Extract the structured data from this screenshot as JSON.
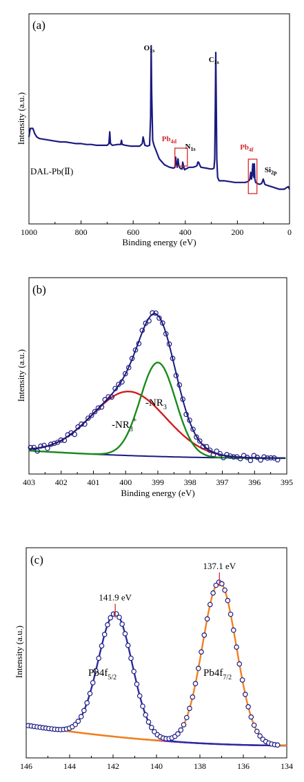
{
  "chart_data": [
    {
      "type": "line",
      "panel_label": "(a)",
      "xlabel": "Binding energy (eV)",
      "ylabel": "Intensity (a.u.)",
      "xlim": [
        1000,
        0
      ],
      "x_reversed": true,
      "xticks": [
        "1000",
        "800",
        "600",
        "400",
        "200",
        "0"
      ],
      "y_ticks_shown": false,
      "series": [
        {
          "name": "DAL-Pb(II)",
          "color": "#1a1a80",
          "x": [
            1000,
            995,
            985,
            978,
            970,
            960,
            940,
            920,
            900,
            880,
            860,
            840,
            820,
            800,
            780,
            760,
            740,
            720,
            700,
            693,
            690,
            687,
            680,
            660,
            648,
            645,
            642,
            630,
            610,
            590,
            575,
            565,
            562,
            558,
            555,
            545,
            537,
            533,
            531,
            529,
            525,
            520,
            500,
            480,
            460,
            445,
            440,
            437,
            434,
            431,
            428,
            425,
            420,
            415,
            412,
            410,
            407,
            404,
            402,
            399,
            396,
            392,
            385,
            370,
            360,
            355,
            352,
            349,
            345,
            340,
            320,
            305,
            295,
            290,
            287,
            285,
            283,
            281,
            279,
            276,
            270,
            250,
            230,
            210,
            190,
            170,
            160,
            156,
            152,
            149,
            146,
            144,
            141,
            139,
            137,
            135,
            133,
            130,
            125,
            118,
            112,
            107,
            104,
            101,
            98,
            95,
            90,
            80,
            60,
            40,
            20,
            10,
            5,
            0
          ],
          "y": [
            0.43,
            0.48,
            0.48,
            0.45,
            0.43,
            0.42,
            0.415,
            0.41,
            0.405,
            0.4,
            0.4,
            0.395,
            0.39,
            0.39,
            0.385,
            0.385,
            0.38,
            0.38,
            0.38,
            0.39,
            0.46,
            0.39,
            0.38,
            0.385,
            0.385,
            0.41,
            0.385,
            0.38,
            0.375,
            0.375,
            0.375,
            0.39,
            0.43,
            0.4,
            0.38,
            0.375,
            0.38,
            0.55,
            0.97,
            0.7,
            0.41,
            0.38,
            0.3,
            0.265,
            0.25,
            0.245,
            0.25,
            0.31,
            0.27,
            0.25,
            0.3,
            0.26,
            0.245,
            0.24,
            0.24,
            0.28,
            0.26,
            0.24,
            0.235,
            0.24,
            0.24,
            0.245,
            0.25,
            0.25,
            0.255,
            0.26,
            0.28,
            0.28,
            0.265,
            0.25,
            0.245,
            0.24,
            0.24,
            0.245,
            0.3,
            0.6,
            0.93,
            0.6,
            0.3,
            0.19,
            0.17,
            0.17,
            0.165,
            0.16,
            0.16,
            0.16,
            0.165,
            0.17,
            0.18,
            0.22,
            0.18,
            0.2,
            0.27,
            0.22,
            0.19,
            0.27,
            0.18,
            0.16,
            0.155,
            0.15,
            0.15,
            0.155,
            0.165,
            0.18,
            0.165,
            0.15,
            0.145,
            0.14,
            0.13,
            0.12,
            0.12,
            0.13,
            0.135,
            0.12
          ]
        }
      ],
      "annotations": [
        {
          "label": "O",
          "sub": "1s",
          "color": "#000000",
          "x": 533
        },
        {
          "label": "C",
          "sub": "1s",
          "color": "#000000",
          "x": 285
        },
        {
          "label": "Pb",
          "sub": "4d",
          "color": "#d6282b",
          "x": 430,
          "boxed": true
        },
        {
          "label": "N",
          "sub": "1s",
          "color": "#000000",
          "x": 402
        },
        {
          "label": "Pb",
          "sub": "4f",
          "color": "#d6282b",
          "x": 143,
          "boxed": true
        },
        {
          "label": "Si",
          "sub": "2p",
          "color": "#000000",
          "x": 104
        }
      ],
      "sample_label": "DAL-Pb(Ⅱ)"
    },
    {
      "type": "scatter",
      "panel_label": "(b)",
      "xlabel": "Binding energy (eV)",
      "ylabel": "Intensity (a.u.)",
      "xlim": [
        403,
        395
      ],
      "x_reversed": true,
      "xticks": [
        "403",
        "402",
        "401",
        "400",
        "399",
        "398",
        "397",
        "396",
        "395"
      ],
      "y_ticks_shown": false,
      "series": [
        {
          "name": "data",
          "kind": "points",
          "color": "#1a1a80"
        },
        {
          "name": "envelope",
          "kind": "line",
          "color": "#1a1a80"
        },
        {
          "name": "-NR3+",
          "kind": "line",
          "color": "#d01c1c",
          "center": 399.9,
          "height": 0.3,
          "width": 1.15
        },
        {
          "name": "-NR3",
          "kind": "line",
          "color": "#1a8a1a",
          "center": 399.0,
          "height": 0.44,
          "width": 0.55
        },
        {
          "name": "background",
          "kind": "line",
          "color": "#1a1a80"
        }
      ],
      "peak_labels": [
        {
          "text": "-NR",
          "sub": "3",
          "sup": "+"
        },
        {
          "text": "-NR",
          "sub": "3",
          "sup": ""
        }
      ]
    },
    {
      "type": "scatter",
      "panel_label": "(c)",
      "xlabel": "",
      "ylabel": "Intensity (a.u.)",
      "xlim": [
        146,
        134
      ],
      "x_reversed": true,
      "xticks": [
        "146",
        "144",
        "142",
        "140",
        "138",
        "136",
        "134"
      ],
      "y_ticks_shown": false,
      "series": [
        {
          "name": "data",
          "kind": "points",
          "color": "#1a1a80"
        },
        {
          "name": "Pb4f5/2",
          "kind": "line",
          "color": "#2a2aa0",
          "center": 141.9,
          "height": 0.73,
          "width": 0.78
        },
        {
          "name": "Pb4f7/2",
          "kind": "line",
          "color": "#f08020",
          "center": 137.1,
          "height": 0.96,
          "width": 0.78
        },
        {
          "name": "background",
          "kind": "line",
          "color": "#f08020"
        }
      ],
      "peak_labels": [
        {
          "text": "141.9 eV",
          "x": 141.9
        },
        {
          "text": "137.1 eV",
          "x": 137.1
        }
      ],
      "component_labels": [
        {
          "text": "Pb4f",
          "sub": "5/2"
        },
        {
          "text": "Pb4f",
          "sub": "7/2"
        }
      ]
    }
  ]
}
